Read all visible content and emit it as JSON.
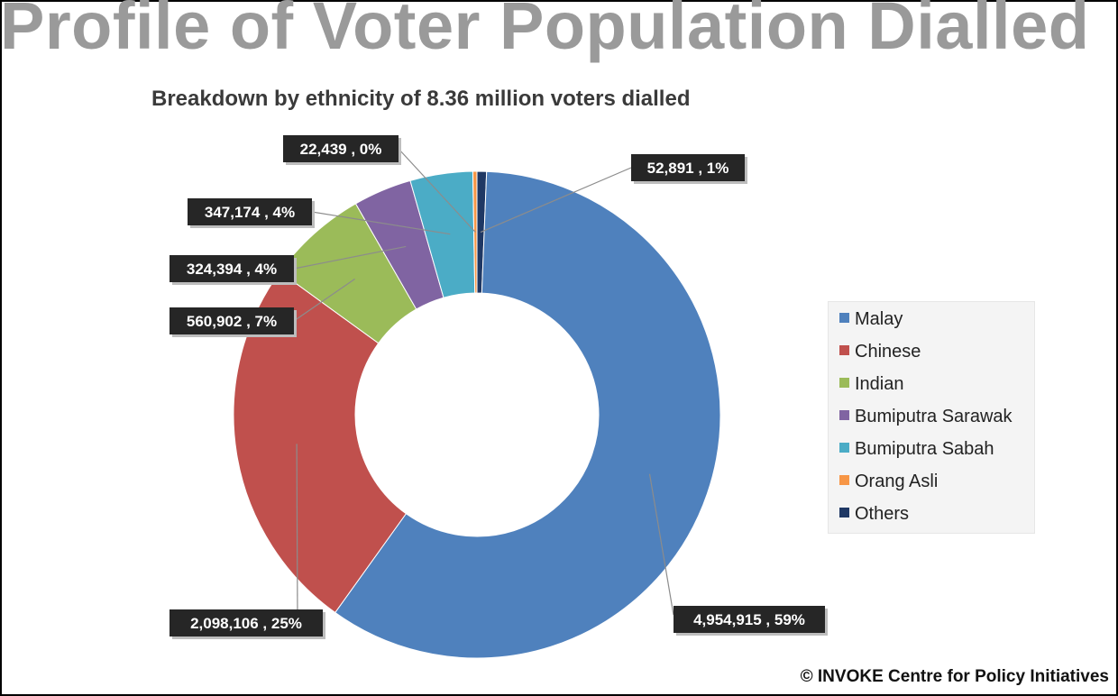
{
  "headline": "Profile of Voter Population Dialled",
  "copyright": "© INVOKE Centre for Policy Initiatives",
  "chart_data": {
    "type": "pie",
    "variant": "doughnut",
    "title": "Breakdown by ethnicity of 8.36 million voters dialled",
    "legend_position": "right",
    "categories": [
      "Malay",
      "Chinese",
      "Indian",
      "Bumiputra Sarawak",
      "Bumiputra Sabah",
      "Orang Asli",
      "Others"
    ],
    "values": [
      4954915,
      2098106,
      560902,
      324394,
      347174,
      22439,
      52891
    ],
    "colors": [
      "#4f81bd",
      "#c0504d",
      "#9bbb59",
      "#8064a2",
      "#4bacc6",
      "#f79646",
      "#1f3864"
    ],
    "data_labels": [
      "4,954,915 , 59%",
      "2,098,106 , 25%",
      "560,902 , 7%",
      "324,394 , 4%",
      "347,174 , 4%",
      "22,439 , 0%",
      "52,891 , 1%"
    ]
  }
}
